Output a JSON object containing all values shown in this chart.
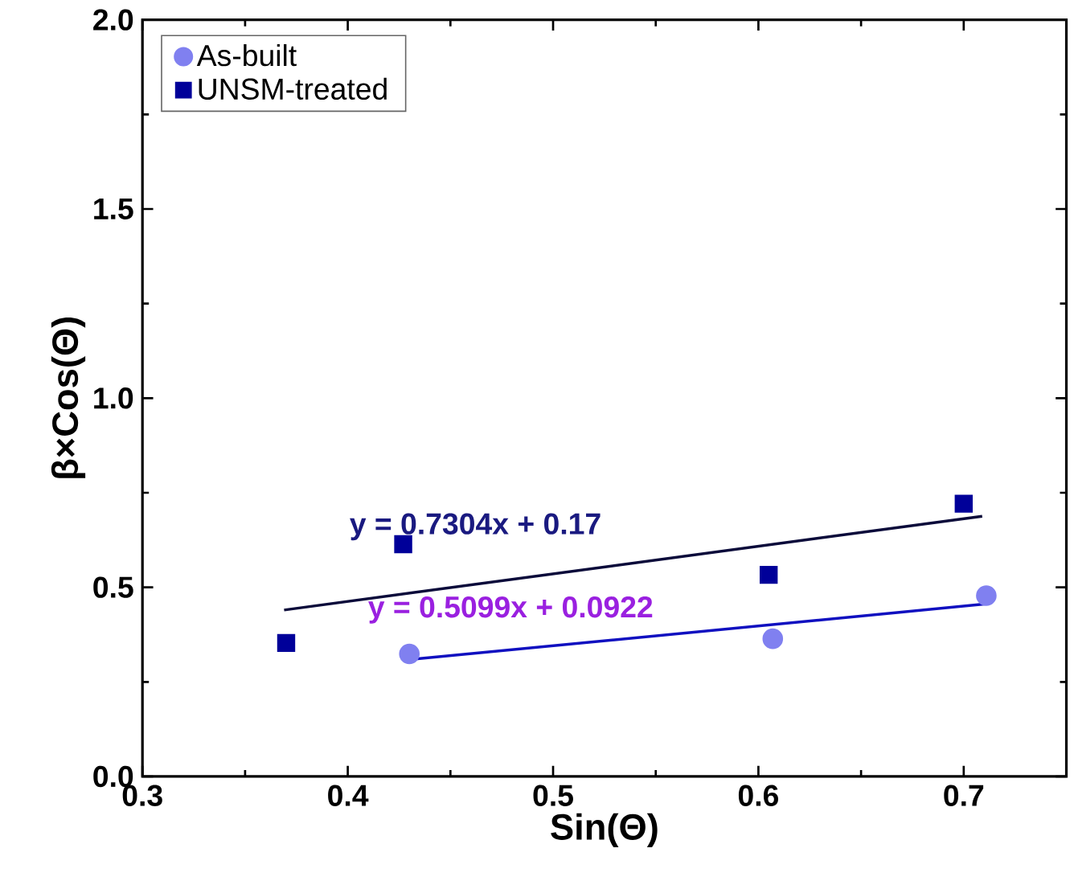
{
  "chart_data": {
    "type": "scatter",
    "xlabel": "Sin(Θ)",
    "ylabel": "β×Cos(Θ)",
    "xlim": [
      0.3,
      0.75
    ],
    "xticks": [
      0.3,
      0.4,
      0.5,
      0.6,
      0.7
    ],
    "ylim": [
      0,
      2
    ],
    "yticks": [
      {
        "value": 0,
        "label": "0.0"
      },
      0.5,
      {
        "value": 1,
        "label": "1.0"
      },
      1.5,
      {
        "value": 2,
        "label": "2.0"
      }
    ],
    "legend": "top left",
    "grid": false,
    "series": [
      {
        "name": "As-built",
        "color": "#8080f0",
        "marker": "circle",
        "x": [
          0.43,
          0.607,
          0.711
        ],
        "values": [
          0.324,
          0.364,
          0.478
        ]
      },
      {
        "name": "UNSM-treated",
        "color": "#000099",
        "marker": "square",
        "x": [
          0.37,
          0.427,
          0.605,
          0.7
        ],
        "values": [
          0.353,
          0.614,
          0.533,
          0.721
        ]
      },
      {
        "type": "line",
        "color": "#0a0a3a",
        "marker": "none",
        "x": [
          0.369,
          0.709
        ],
        "values": [
          0.44,
          0.688
        ]
      },
      {
        "type": "line",
        "color": "#1010c0",
        "marker": "none",
        "x": [
          0.43,
          0.711
        ],
        "values": [
          0.309,
          0.456
        ]
      }
    ],
    "annotations": [
      "y = 0.7304x + 0.17",
      "y = 0.5099x + 0.0922"
    ]
  }
}
